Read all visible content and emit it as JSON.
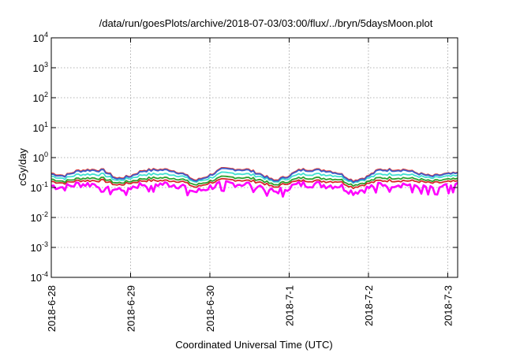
{
  "chart_data": {
    "type": "line",
    "title": "/data/run/goesPlots/archive/2018-07-03/03:00/flux/../bryn/5daysMoon.plot",
    "xlabel": "Coordinated Universal Time (UTC)",
    "ylabel": "cGy/day",
    "yscale": "log",
    "ylim": [
      0.0001,
      10000
    ],
    "xlim": [
      "2018-06-28T00:00",
      "2018-07-03T03:00"
    ],
    "grid": true,
    "legend": "none",
    "x_ticks": [
      "2018-6-28",
      "2018-6-29",
      "2018-6-30",
      "2018-7-1",
      "2018-7-2",
      "2018-7-3"
    ],
    "y_ticks": [
      {
        "value": 0.0001,
        "base": "10",
        "exp": "-4"
      },
      {
        "value": 0.001,
        "base": "10",
        "exp": "-3"
      },
      {
        "value": 0.01,
        "base": "10",
        "exp": "-2"
      },
      {
        "value": 0.1,
        "base": "10",
        "exp": "-1"
      },
      {
        "value": 1,
        "base": "10",
        "exp": "0"
      },
      {
        "value": 10,
        "base": "10",
        "exp": "1"
      },
      {
        "value": 100,
        "base": "10",
        "exp": "2"
      },
      {
        "value": 1000,
        "base": "10",
        "exp": "3"
      },
      {
        "value": 10000,
        "base": "10",
        "exp": "4"
      }
    ],
    "series": [
      {
        "color": "#ff00ff",
        "base_values": [
          0.115,
          0.1,
          0.13,
          0.13,
          0.125,
          0.085,
          0.1,
          0.13,
          0.13,
          0.13,
          0.115,
          0.07,
          0.1,
          0.135,
          0.135,
          0.13,
          0.11,
          0.07,
          0.1,
          0.13,
          0.13,
          0.12,
          0.115,
          0.07,
          0.09,
          0.13,
          0.13,
          0.13,
          0.115,
          0.1,
          0.11,
          0.12
        ]
      },
      {
        "color": "#d62728",
        "base_values": [
          0.16,
          0.14,
          0.17,
          0.17,
          0.17,
          0.12,
          0.14,
          0.17,
          0.17,
          0.17,
          0.16,
          0.1,
          0.14,
          0.18,
          0.18,
          0.17,
          0.15,
          0.1,
          0.14,
          0.17,
          0.17,
          0.16,
          0.16,
          0.1,
          0.13,
          0.17,
          0.17,
          0.17,
          0.16,
          0.14,
          0.15,
          0.16
        ]
      },
      {
        "color": "#2ca02c",
        "base_values": [
          0.19,
          0.16,
          0.2,
          0.21,
          0.2,
          0.14,
          0.16,
          0.2,
          0.21,
          0.21,
          0.19,
          0.12,
          0.16,
          0.22,
          0.22,
          0.21,
          0.18,
          0.12,
          0.16,
          0.21,
          0.21,
          0.2,
          0.19,
          0.12,
          0.15,
          0.21,
          0.21,
          0.21,
          0.19,
          0.16,
          0.18,
          0.19
        ]
      },
      {
        "color": "#40e0d0",
        "base_values": [
          0.24,
          0.2,
          0.27,
          0.28,
          0.27,
          0.17,
          0.2,
          0.27,
          0.28,
          0.28,
          0.24,
          0.15,
          0.2,
          0.3,
          0.3,
          0.28,
          0.23,
          0.15,
          0.2,
          0.28,
          0.28,
          0.27,
          0.24,
          0.15,
          0.19,
          0.28,
          0.28,
          0.28,
          0.24,
          0.2,
          0.23,
          0.24
        ]
      },
      {
        "color": "#e8342b",
        "base_values": [
          0.3,
          0.25,
          0.37,
          0.4,
          0.38,
          0.2,
          0.24,
          0.38,
          0.4,
          0.4,
          0.3,
          0.17,
          0.25,
          0.42,
          0.42,
          0.4,
          0.28,
          0.17,
          0.24,
          0.4,
          0.4,
          0.38,
          0.3,
          0.17,
          0.22,
          0.4,
          0.4,
          0.4,
          0.3,
          0.24,
          0.28,
          0.3
        ]
      },
      {
        "color": "#3a5fcd",
        "base_values": [
          0.28,
          0.24,
          0.35,
          0.38,
          0.36,
          0.19,
          0.23,
          0.36,
          0.38,
          0.38,
          0.29,
          0.16,
          0.24,
          0.4,
          0.4,
          0.38,
          0.27,
          0.16,
          0.23,
          0.38,
          0.38,
          0.36,
          0.29,
          0.16,
          0.21,
          0.38,
          0.38,
          0.38,
          0.29,
          0.23,
          0.27,
          0.29
        ]
      }
    ]
  }
}
